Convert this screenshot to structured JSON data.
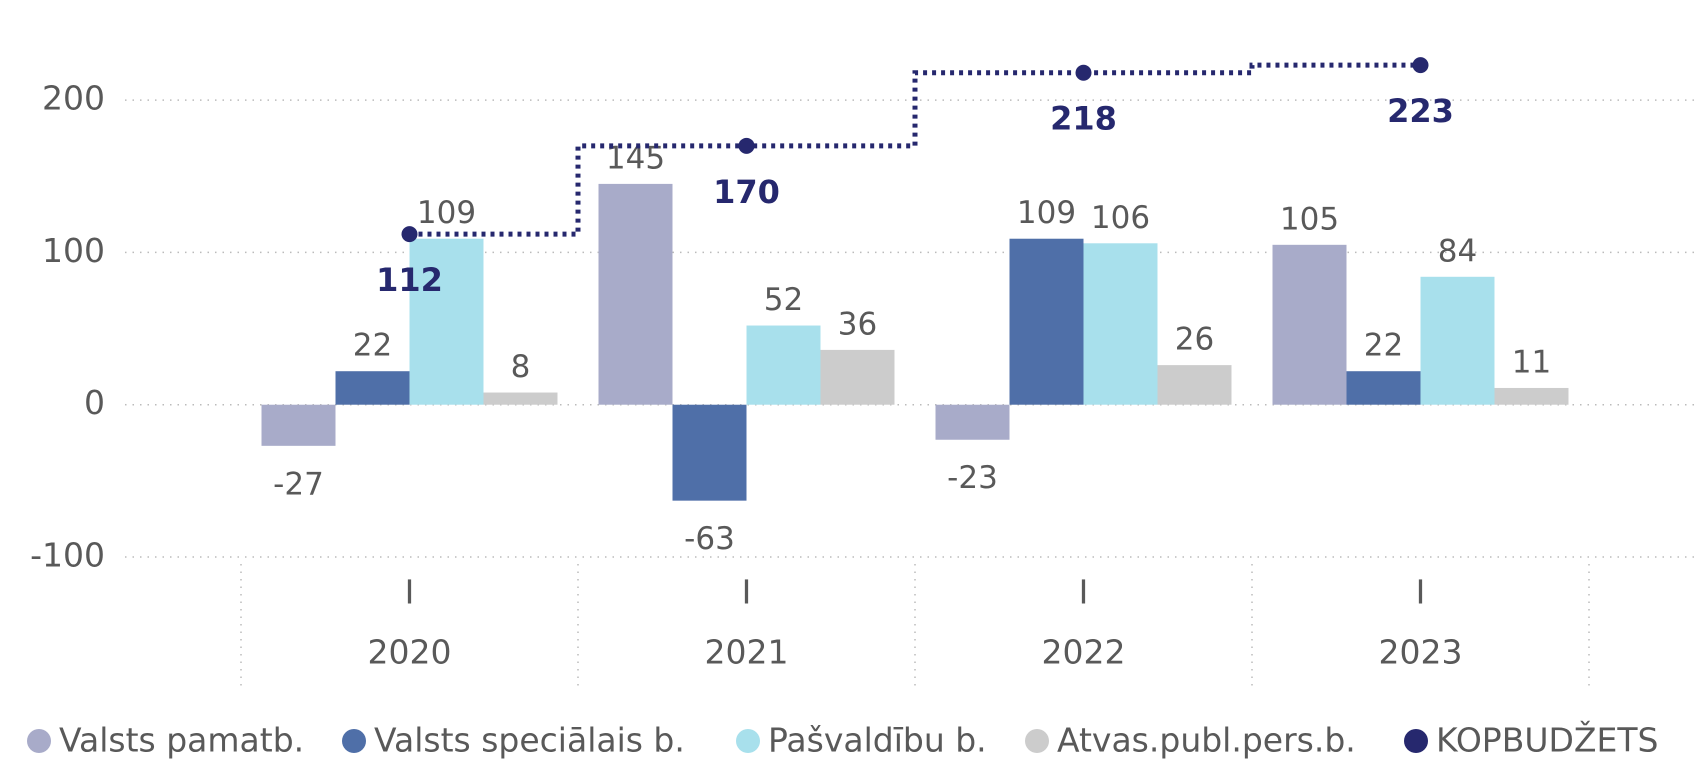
{
  "chart_data": {
    "type": "bar",
    "categories": [
      "2020",
      "2021",
      "2022",
      "2023"
    ],
    "subcategories": [
      "I",
      "I",
      "I",
      "I"
    ],
    "series": [
      {
        "name": "Valsts pamatb.",
        "color": "#a8abc9",
        "values": [
          -27,
          145,
          -23,
          105
        ]
      },
      {
        "name": "Valsts speciālais b.",
        "color": "#4f6fa8",
        "values": [
          22,
          -63,
          109,
          22
        ]
      },
      {
        "name": "Pašvaldību b.",
        "color": "#a8e0ec",
        "values": [
          109,
          52,
          106,
          84
        ]
      },
      {
        "name": "Atvas.publ.pers.b.",
        "color": "#cccccc",
        "values": [
          8,
          36,
          26,
          11
        ]
      },
      {
        "name": "KOPBUDŽETS",
        "color": "#26286e",
        "type": "step",
        "values": [
          112,
          170,
          218,
          223
        ]
      }
    ],
    "ylim": [
      -100,
      250
    ],
    "yticks": [
      -100,
      0,
      100,
      200
    ],
    "grid": true,
    "legend": "bottom"
  }
}
